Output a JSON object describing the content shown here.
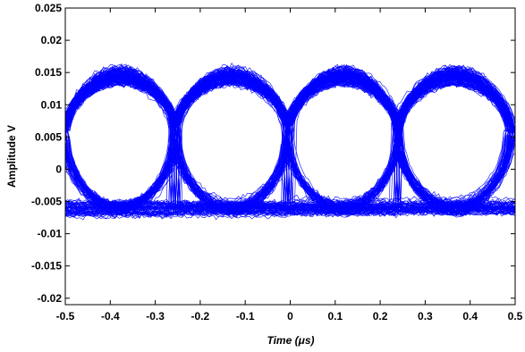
{
  "chart_data": {
    "type": "line",
    "title": "",
    "xlabel": "Time (μs)",
    "ylabel": "Amplitude  V",
    "xlim": [
      -0.5,
      0.5
    ],
    "ylim": [
      -0.021,
      0.025
    ],
    "grid": false,
    "line_color": "#0000ff",
    "xticks": [
      -0.5,
      -0.4,
      -0.3,
      -0.2,
      -0.1,
      0,
      0.1,
      0.2,
      0.3,
      0.4,
      0.5
    ],
    "xtick_labels": [
      "-0.5",
      "-0.4",
      "-0.3",
      "-0.2",
      "-0.1",
      "0",
      "0.1",
      "0.2",
      "0.3",
      "0.4",
      "0.5"
    ],
    "yticks": [
      0.025,
      0.02,
      0.015,
      0.01,
      0.005,
      0,
      -0.005,
      -0.01,
      -0.015,
      -0.02
    ],
    "ytick_labels": [
      "0.025",
      "0.02",
      "0.015",
      "0.01",
      "0.005",
      "0",
      "-0.005",
      "-0.01",
      "-0.015",
      "-0.02"
    ],
    "eye_pattern": {
      "high_level": 0.0145,
      "low_level": -0.006,
      "crossing_level": 0.006,
      "noise_high": 0.0025,
      "noise_low": 0.0018,
      "crossings_x": [
        -0.5,
        -0.255,
        -0.005,
        0.24,
        0.49
      ],
      "trace_count": 220
    }
  }
}
